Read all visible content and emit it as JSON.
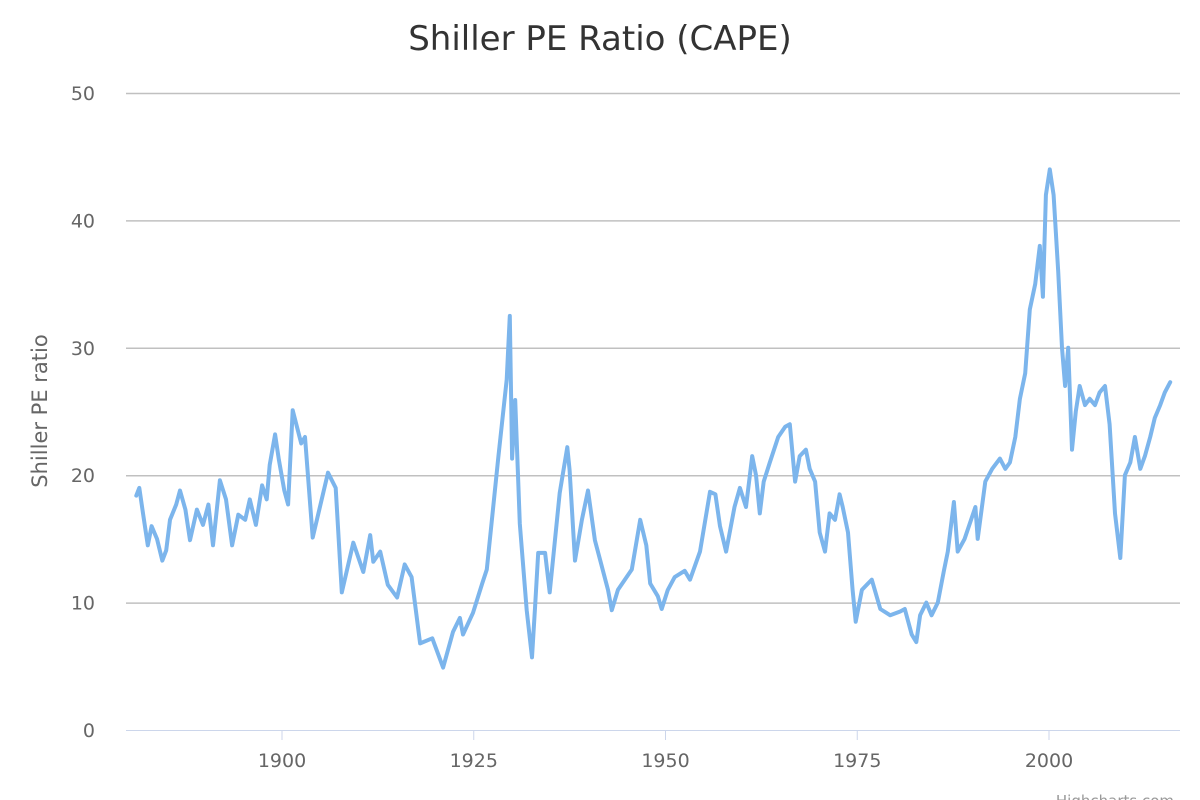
{
  "chart_data": {
    "type": "line",
    "title": "Shiller PE Ratio (CAPE)",
    "xlabel": "",
    "ylabel": "Shiller PE ratio",
    "xlim": [
      1880,
      2017
    ],
    "ylim": [
      0,
      50
    ],
    "x_ticks": [
      "1900",
      "1925",
      "1950",
      "1975",
      "2000"
    ],
    "x_tick_values": [
      1900,
      1925,
      1950,
      1975,
      2000
    ],
    "y_ticks": [
      "0",
      "10",
      "20",
      "30",
      "40",
      "50"
    ],
    "y_tick_values": [
      0,
      10,
      20,
      30,
      40,
      50
    ],
    "grid": true,
    "legend": "none",
    "credit": "Highcharts.com",
    "color": "#7cb5ec",
    "series": [
      {
        "name": "Shiller PE ratio",
        "x": [
          1881.0,
          1881.4,
          1881.9,
          1882.5,
          1883.0,
          1883.7,
          1884.4,
          1884.9,
          1885.4,
          1886.2,
          1886.7,
          1887.4,
          1888.0,
          1888.9,
          1889.7,
          1890.4,
          1891.0,
          1891.9,
          1892.7,
          1893.5,
          1894.3,
          1895.2,
          1895.8,
          1896.6,
          1897.4,
          1898.0,
          1898.4,
          1899.1,
          1899.6,
          1900.3,
          1900.8,
          1901.4,
          1902.5,
          1903.0,
          1904.0,
          1906.0,
          1907.0,
          1907.8,
          1909.3,
          1910.6,
          1911.5,
          1911.9,
          1912.8,
          1913.8,
          1915.0,
          1916.0,
          1916.9,
          1918.0,
          1919.6,
          1921.0,
          1922.3,
          1923.2,
          1923.6,
          1924.9,
          1926.1,
          1926.7,
          1928.2,
          1929.3,
          1929.7,
          1930.0,
          1930.4,
          1931.0,
          1931.9,
          1932.6,
          1933.0,
          1933.4,
          1934.3,
          1934.9,
          1936.2,
          1937.2,
          1937.5,
          1938.2,
          1939.1,
          1939.9,
          1940.8,
          1941.5,
          1942.5,
          1943.0,
          1943.8,
          1944.7,
          1945.6,
          1946.7,
          1947.5,
          1948.0,
          1949.0,
          1949.5,
          1950.3,
          1951.2,
          1952.5,
          1953.2,
          1954.5,
          1955.8,
          1956.5,
          1957.1,
          1957.9,
          1959.0,
          1959.7,
          1960.5,
          1961.3,
          1961.8,
          1962.3,
          1962.8,
          1963.6,
          1964.7,
          1965.6,
          1966.2,
          1966.9,
          1967.5,
          1968.3,
          1968.8,
          1969.5,
          1970.1,
          1970.8,
          1971.4,
          1972.1,
          1972.7,
          1973.1,
          1973.8,
          1974.4,
          1974.8,
          1975.6,
          1976.4,
          1976.9,
          1978.0,
          1979.3,
          1980.6,
          1981.2,
          1982.1,
          1982.7,
          1983.2,
          1984.0,
          1984.7,
          1985.5,
          1986.3,
          1986.8,
          1987.6,
          1988.1,
          1989.0,
          1990.4,
          1990.7,
          1991.7,
          1992.6,
          1993.6,
          1994.3,
          1994.9,
          1995.6,
          1996.2,
          1996.9,
          1997.5,
          1998.2,
          1998.8,
          1999.2,
          1999.6,
          2000.1,
          2000.6,
          2001.2,
          2001.7,
          2002.1,
          2002.5,
          2003.0,
          2003.5,
          2004.0,
          2004.7,
          2005.3,
          2006.0,
          2006.6,
          2007.3,
          2007.9,
          2008.6,
          2009.3,
          2009.9,
          2010.6,
          2011.2,
          2011.9,
          2012.5,
          2013.2,
          2013.8,
          2014.5,
          2015.1,
          2015.8
        ],
        "values": [
          18.4,
          19.0,
          16.9,
          14.5,
          16.0,
          15.0,
          13.3,
          14.1,
          16.5,
          17.7,
          18.8,
          17.3,
          14.9,
          17.3,
          16.1,
          17.7,
          14.5,
          19.6,
          18.1,
          14.5,
          16.9,
          16.5,
          18.1,
          16.1,
          19.2,
          18.1,
          20.8,
          23.2,
          21.2,
          18.8,
          17.7,
          25.1,
          22.5,
          23.0,
          15.1,
          20.2,
          19.0,
          10.8,
          14.7,
          12.4,
          15.3,
          13.2,
          14.0,
          11.4,
          10.4,
          13.0,
          12.0,
          6.8,
          7.2,
          4.9,
          7.7,
          8.8,
          7.5,
          9.2,
          11.5,
          12.6,
          21.4,
          27.5,
          32.5,
          21.3,
          25.9,
          16.2,
          9.4,
          5.7,
          9.7,
          13.9,
          13.9,
          10.8,
          18.6,
          22.2,
          20.4,
          13.3,
          16.5,
          18.8,
          14.9,
          13.3,
          11.0,
          9.4,
          11.0,
          11.8,
          12.6,
          16.5,
          14.5,
          11.5,
          10.5,
          9.5,
          11.0,
          12.0,
          12.5,
          11.8,
          14.0,
          18.7,
          18.5,
          16.0,
          14.0,
          17.5,
          19.0,
          17.5,
          21.5,
          20.0,
          17.0,
          19.5,
          21.0,
          23.0,
          23.8,
          24.0,
          19.5,
          21.5,
          22.0,
          20.5,
          19.5,
          15.5,
          14.0,
          17.0,
          16.5,
          18.5,
          17.5,
          15.5,
          11.0,
          8.5,
          11.0,
          11.5,
          11.8,
          9.5,
          9.0,
          9.3,
          9.5,
          7.5,
          6.9,
          9.0,
          10.0,
          9.0,
          10.0,
          12.5,
          14.0,
          17.9,
          14.0,
          15.0,
          17.5,
          15.0,
          19.5,
          20.5,
          21.3,
          20.5,
          21.0,
          23.0,
          26.0,
          28.0,
          33.0,
          35.0,
          38.0,
          34.0,
          42.0,
          44.0,
          42.0,
          36.0,
          30.0,
          27.0,
          30.0,
          22.0,
          25.0,
          27.0,
          25.5,
          26.0,
          25.5,
          26.5,
          27.0,
          24.0,
          17.0,
          13.5,
          20.0,
          21.0,
          23.0,
          20.5,
          21.5,
          23.0,
          24.5,
          25.5,
          26.5,
          27.3
        ]
      }
    ]
  }
}
